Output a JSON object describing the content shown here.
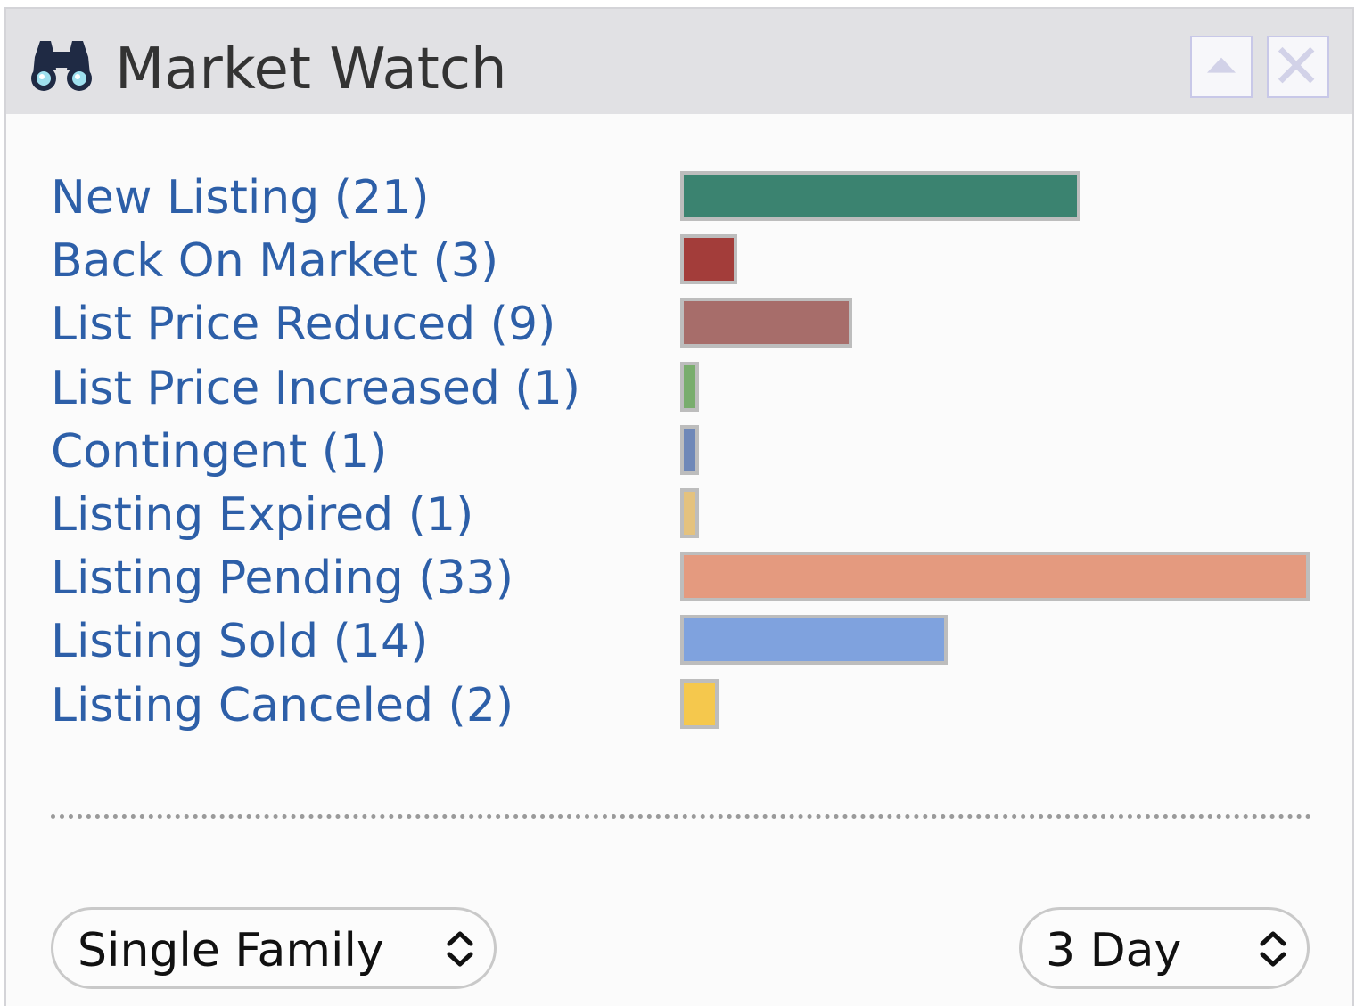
{
  "header": {
    "title": "Market Watch",
    "icon": "binoculars-icon",
    "buttons": [
      "collapse-icon",
      "close-icon"
    ]
  },
  "rows": [
    {
      "label": "New Listing (21)",
      "count": 21,
      "color": "#3b8370"
    },
    {
      "label": "Back On Market (3)",
      "count": 3,
      "color": "#a33d3a"
    },
    {
      "label": "List Price Reduced (9)",
      "count": 9,
      "color": "#a76d6a"
    },
    {
      "label": "List Price Increased (1)",
      "count": 1,
      "color": "#79ad6d"
    },
    {
      "label": "Contingent (1)",
      "count": 1,
      "color": "#6f88b8"
    },
    {
      "label": "Listing Expired (1)",
      "count": 1,
      "color": "#e4c27e"
    },
    {
      "label": "Listing Pending (33)",
      "count": 33,
      "color": "#e49a7f"
    },
    {
      "label": "Listing Sold (14)",
      "count": 14,
      "color": "#7fa2de"
    },
    {
      "label": "Listing Canceled (2)",
      "count": 2,
      "color": "#f5c84d"
    }
  ],
  "max_count": 33,
  "filters": {
    "property_type": "Single Family",
    "period": "3 Day"
  }
}
